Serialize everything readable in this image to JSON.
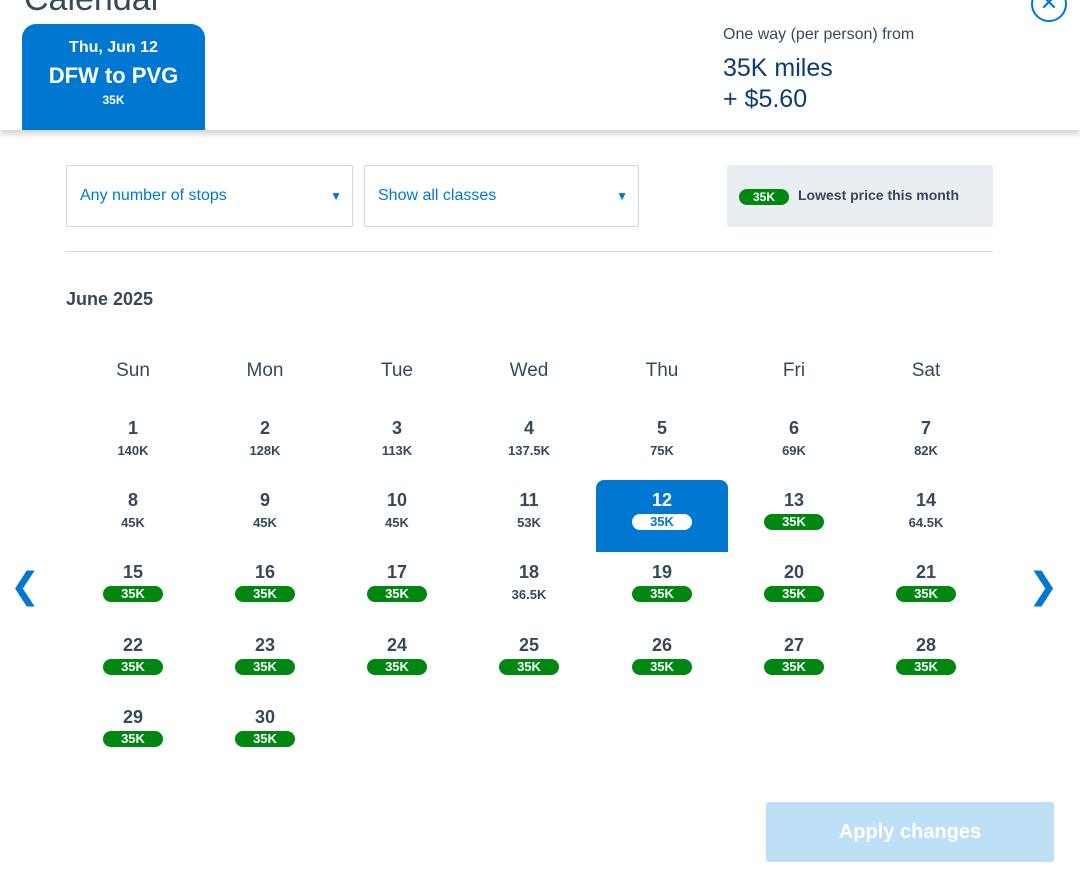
{
  "dialog": {
    "title": "Calendar",
    "close_icon": "close-circle-icon"
  },
  "flight_tab": {
    "date": "Thu, Jun 12",
    "route": "DFW to PVG",
    "price": "35K"
  },
  "fare_summary": {
    "caption": "One way (per person) from",
    "miles": "35K miles",
    "cash": "+ $5.60"
  },
  "filters": {
    "stops": {
      "selected": "Any number of stops"
    },
    "classes": {
      "selected": "Show all classes"
    }
  },
  "legend": {
    "pill": "35K",
    "text": "Lowest price this month"
  },
  "calendar": {
    "month": "June 2025",
    "weekdays": [
      "Sun",
      "Mon",
      "Tue",
      "Wed",
      "Thu",
      "Fri",
      "Sat"
    ],
    "selected_day": "12",
    "days": [
      {
        "day": "1",
        "fare": "140K",
        "lowest": false
      },
      {
        "day": "2",
        "fare": "128K",
        "lowest": false
      },
      {
        "day": "3",
        "fare": "113K",
        "lowest": false
      },
      {
        "day": "4",
        "fare": "137.5K",
        "lowest": false
      },
      {
        "day": "5",
        "fare": "75K",
        "lowest": false
      },
      {
        "day": "6",
        "fare": "69K",
        "lowest": false
      },
      {
        "day": "7",
        "fare": "82K",
        "lowest": false
      },
      {
        "day": "8",
        "fare": "45K",
        "lowest": false
      },
      {
        "day": "9",
        "fare": "45K",
        "lowest": false
      },
      {
        "day": "10",
        "fare": "45K",
        "lowest": false
      },
      {
        "day": "11",
        "fare": "53K",
        "lowest": false
      },
      {
        "day": "12",
        "fare": "35K",
        "lowest": true
      },
      {
        "day": "13",
        "fare": "35K",
        "lowest": true
      },
      {
        "day": "14",
        "fare": "64.5K",
        "lowest": false
      },
      {
        "day": "15",
        "fare": "35K",
        "lowest": true
      },
      {
        "day": "16",
        "fare": "35K",
        "lowest": true
      },
      {
        "day": "17",
        "fare": "35K",
        "lowest": true
      },
      {
        "day": "18",
        "fare": "36.5K",
        "lowest": false
      },
      {
        "day": "19",
        "fare": "35K",
        "lowest": true
      },
      {
        "day": "20",
        "fare": "35K",
        "lowest": true
      },
      {
        "day": "21",
        "fare": "35K",
        "lowest": true
      },
      {
        "day": "22",
        "fare": "35K",
        "lowest": true
      },
      {
        "day": "23",
        "fare": "35K",
        "lowest": true
      },
      {
        "day": "24",
        "fare": "35K",
        "lowest": true
      },
      {
        "day": "25",
        "fare": "35K",
        "lowest": true
      },
      {
        "day": "26",
        "fare": "35K",
        "lowest": true
      },
      {
        "day": "27",
        "fare": "35K",
        "lowest": true
      },
      {
        "day": "28",
        "fare": "35K",
        "lowest": true
      },
      {
        "day": "29",
        "fare": "35K",
        "lowest": true
      },
      {
        "day": "30",
        "fare": "35K",
        "lowest": true
      }
    ]
  },
  "navigation": {
    "prev_icon": "chevron-left-icon",
    "next_icon": "chevron-right-icon"
  },
  "actions": {
    "apply_label": "Apply changes"
  },
  "colors": {
    "accent": "#0078d2",
    "lowest_badge": "#008712",
    "apply_disabled": "#bde0f7"
  }
}
